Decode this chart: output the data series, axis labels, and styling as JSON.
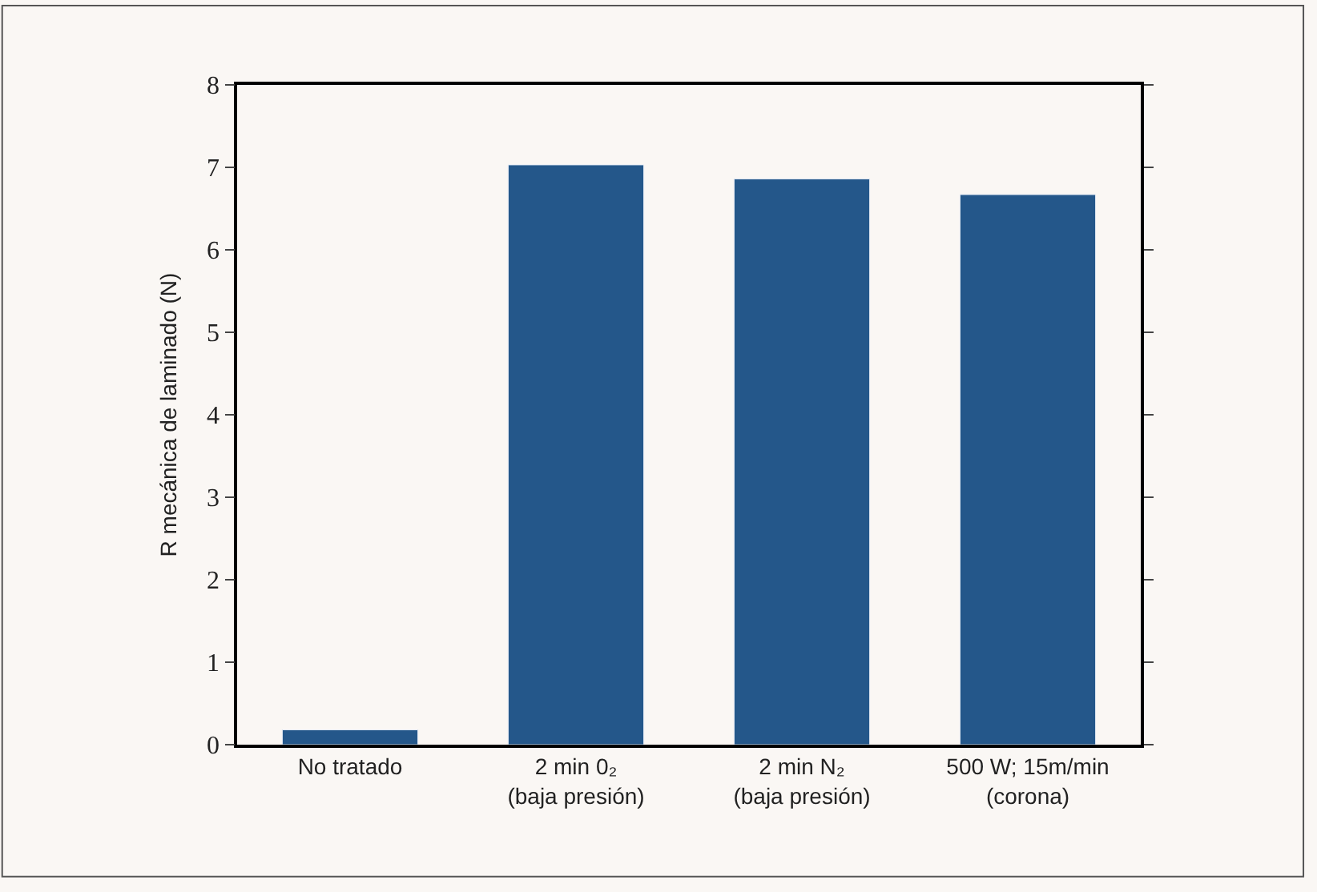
{
  "chart_data": {
    "type": "bar",
    "ylabel": "R mecánica de laminado (N)",
    "categories": [
      "No tratado",
      "2 min 0₂\n(baja presión)",
      "2 min N₂\n(baja presión)",
      "500 W; 15m/min\n(corona)"
    ],
    "values": [
      0.18,
      7.03,
      6.86,
      6.67
    ],
    "color": "#24578a",
    "ylim": [
      0,
      8
    ],
    "yticks": [
      0,
      1,
      2,
      3,
      4,
      5,
      6,
      7,
      8
    ],
    "grid": false
  }
}
